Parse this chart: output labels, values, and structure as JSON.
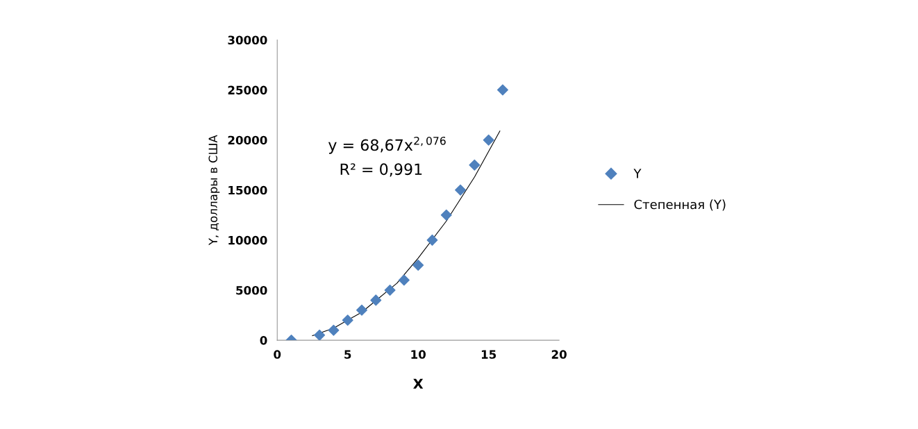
{
  "chart_data": {
    "type": "scatter",
    "xlabel": "X",
    "ylabel": "Y, доллары в США",
    "annotations": [
      "y = 68,67x$^{2,076}$",
      "R² = 0,991"
    ],
    "series": [
      {
        "name": "Y",
        "color": "#4f81bd",
        "marker": "diamond",
        "x": [
          1,
          3,
          4,
          5,
          6,
          7,
          8,
          9,
          10,
          11,
          12,
          13,
          14,
          15,
          16
        ],
        "values": [
          0,
          500,
          1000,
          2000,
          3000,
          4000,
          5000,
          6000,
          7500,
          10000,
          12500,
          15000,
          17500,
          20000,
          25000
        ]
      },
      {
        "name": "Степенная (Y)",
        "type": "line",
        "color": "#000000",
        "marker": "none",
        "line_style": "solid",
        "x": [
          2.5,
          4,
          6,
          8.5,
          10,
          12,
          14,
          15.8
        ],
        "values": [
          450,
          1200,
          2800,
          5700,
          8200,
          11900,
          16300,
          20900
        ]
      }
    ],
    "xlim": [
      0,
      20
    ],
    "xticks": [
      0,
      5,
      10,
      15,
      20
    ],
    "ylim": [
      0,
      30000
    ],
    "yticks": [
      0,
      5000,
      10000,
      15000,
      20000,
      25000,
      30000
    ],
    "grid": false,
    "legend": "right"
  }
}
